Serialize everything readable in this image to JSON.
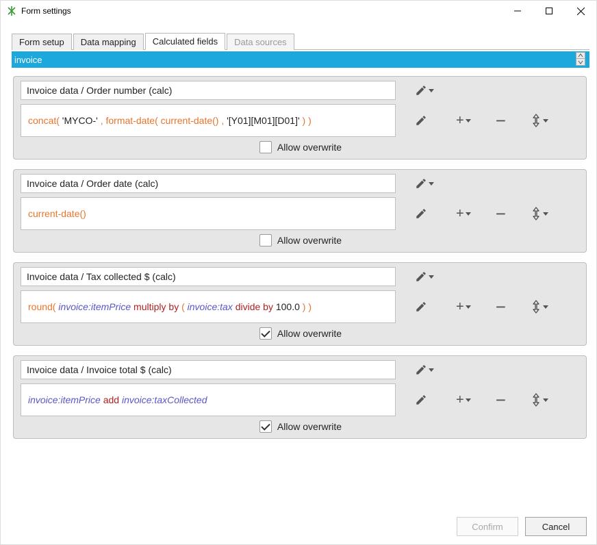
{
  "window": {
    "title": "Form settings"
  },
  "tabs": [
    {
      "label": "Form setup",
      "state": "normal"
    },
    {
      "label": "Data mapping",
      "state": "normal"
    },
    {
      "label": "Calculated fields",
      "state": "active"
    },
    {
      "label": "Data sources",
      "state": "disabled"
    }
  ],
  "selector": {
    "value": "invoice",
    "bg_color": "#1ca8dd"
  },
  "overwrite_label": "Allow overwrite",
  "fields": [
    {
      "name": "Invoice data / Order number (calc)",
      "allow_overwrite": false,
      "expression": [
        {
          "text": "concat(",
          "cls": "tok-fn"
        },
        {
          "text": " 'MYCO-' ",
          "cls": "tok-str"
        },
        {
          "text": ",",
          "cls": "tok-punct"
        },
        {
          "text": "  format-date(",
          "cls": "tok-fn"
        },
        {
          "text": "  current-date()",
          "cls": "tok-fn"
        },
        {
          "text": "  ,",
          "cls": "tok-punct"
        },
        {
          "text": "  '[Y01][M01][D01]' ",
          "cls": "tok-str"
        },
        {
          "text": " )",
          "cls": "tok-punct"
        },
        {
          "text": "  )",
          "cls": "tok-punct"
        }
      ]
    },
    {
      "name": "Invoice data / Order date (calc)",
      "allow_overwrite": false,
      "expression": [
        {
          "text": "current-date()",
          "cls": "tok-fn"
        }
      ]
    },
    {
      "name": "Invoice data / Tax collected $ (calc)",
      "allow_overwrite": true,
      "expression": [
        {
          "text": "round(",
          "cls": "tok-fn"
        },
        {
          "text": "  invoice:itemPrice",
          "cls": "tok-ref"
        },
        {
          "text": "   multiply by",
          "cls": "tok-kw"
        },
        {
          "text": "   (",
          "cls": "tok-punct"
        },
        {
          "text": "   invoice:tax",
          "cls": "tok-ref"
        },
        {
          "text": "   divide by",
          "cls": "tok-kw"
        },
        {
          "text": "   100.0",
          "cls": "tok-num"
        },
        {
          "text": "    )",
          "cls": "tok-punct"
        },
        {
          "text": "  )",
          "cls": "tok-punct"
        }
      ]
    },
    {
      "name": "Invoice data / Invoice total $ (calc)",
      "allow_overwrite": true,
      "expression": [
        {
          "text": "invoice:itemPrice",
          "cls": "tok-ref"
        },
        {
          "text": "   add",
          "cls": "tok-kw"
        },
        {
          "text": "    invoice:taxCollected",
          "cls": "tok-ref"
        }
      ]
    }
  ],
  "footer": {
    "confirm": "Confirm",
    "cancel": "Cancel"
  },
  "colors": {
    "card_bg": "#e6e6e6",
    "card_border": "#bdbdbd",
    "fn": "#e8742c",
    "kw": "#b02020",
    "ref": "#5a55c7"
  }
}
